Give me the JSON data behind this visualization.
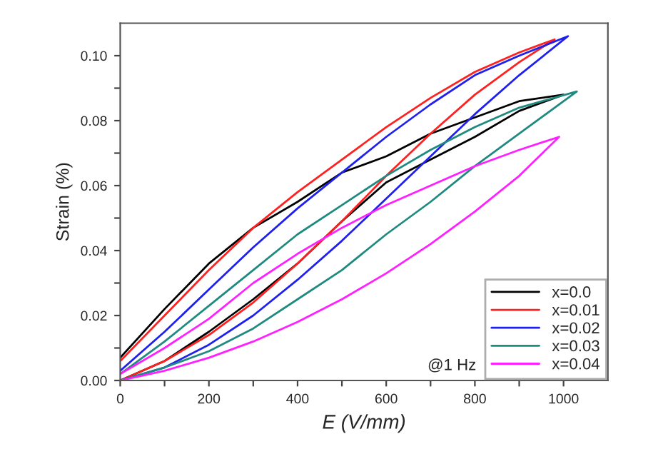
{
  "chart_data": {
    "type": "line",
    "xlabel": "E (V/mm)",
    "ylabel": "Strain (%)",
    "xlim": [
      0,
      1100
    ],
    "ylim": [
      0,
      0.11
    ],
    "xticks": [
      0,
      {
        "value": 100,
        "label": null
      },
      200,
      {
        "value": 300,
        "label": null
      },
      400,
      {
        "value": 500,
        "label": null
      },
      600,
      {
        "value": 700,
        "label": null
      },
      800,
      {
        "value": 900,
        "label": null
      },
      1000
    ],
    "yticks": [
      {
        "value": 0,
        "label": "0.00"
      },
      {
        "value": 0.01,
        "label": null
      },
      {
        "value": 0.02,
        "label": "0.02"
      },
      {
        "value": 0.03,
        "label": null
      },
      {
        "value": 0.04,
        "label": "0.04"
      },
      {
        "value": 0.05,
        "label": null
      },
      {
        "value": 0.06,
        "label": "0.06"
      },
      {
        "value": 0.07,
        "label": null
      },
      {
        "value": 0.08,
        "label": "0.08"
      },
      {
        "value": 0.09,
        "label": null
      },
      {
        "value": 0.1,
        "label": "0.10"
      }
    ],
    "grid": false,
    "legend": "bottom right",
    "marker": "none",
    "line_style": "solid",
    "annotations": [
      "@1 Hz"
    ],
    "series": [
      {
        "name": "x=0.0",
        "color": "#000000",
        "x": [
          0,
          100,
          200,
          300,
          400,
          500,
          600,
          700,
          800,
          900,
          1000,
          900,
          800,
          700,
          600,
          500,
          400,
          300,
          200,
          100,
          0
        ],
        "values": [
          0,
          0.006,
          0.015,
          0.025,
          0.036,
          0.049,
          0.061,
          0.068,
          0.075,
          0.083,
          0.088,
          0.086,
          0.081,
          0.076,
          0.069,
          0.064,
          0.055,
          0.047,
          0.036,
          0.022,
          0.007
        ]
      },
      {
        "name": "x=0.01",
        "color": "#ff2020",
        "x": [
          0,
          100,
          200,
          300,
          400,
          500,
          600,
          700,
          800,
          900,
          980,
          900,
          800,
          700,
          600,
          500,
          400,
          300,
          200,
          100,
          0
        ],
        "values": [
          0,
          0.006,
          0.014,
          0.024,
          0.036,
          0.049,
          0.063,
          0.076,
          0.088,
          0.098,
          0.105,
          0.101,
          0.095,
          0.087,
          0.078,
          0.068,
          0.058,
          0.047,
          0.034,
          0.02,
          0.006
        ]
      },
      {
        "name": "x=0.02",
        "color": "#2020ee",
        "x": [
          0,
          100,
          200,
          300,
          400,
          500,
          600,
          700,
          800,
          900,
          1010,
          900,
          800,
          700,
          600,
          500,
          400,
          300,
          200,
          100,
          0
        ],
        "values": [
          0,
          0.004,
          0.011,
          0.02,
          0.031,
          0.043,
          0.056,
          0.069,
          0.082,
          0.094,
          0.106,
          0.1,
          0.094,
          0.085,
          0.075,
          0.064,
          0.053,
          0.041,
          0.028,
          0.015,
          0.003
        ]
      },
      {
        "name": "x=0.03",
        "color": "#1f8a80",
        "x": [
          0,
          100,
          200,
          300,
          400,
          500,
          600,
          700,
          800,
          900,
          1030,
          900,
          800,
          700,
          600,
          500,
          400,
          300,
          200,
          100,
          0
        ],
        "values": [
          0,
          0.004,
          0.009,
          0.016,
          0.025,
          0.034,
          0.045,
          0.055,
          0.066,
          0.076,
          0.089,
          0.084,
          0.078,
          0.071,
          0.063,
          0.054,
          0.045,
          0.034,
          0.023,
          0.012,
          0.002
        ]
      },
      {
        "name": "x=0.04",
        "color": "#ff20ff",
        "x": [
          0,
          100,
          200,
          300,
          400,
          500,
          600,
          700,
          800,
          900,
          990,
          900,
          800,
          700,
          600,
          500,
          400,
          300,
          200,
          100,
          0
        ],
        "values": [
          0,
          0.003,
          0.007,
          0.012,
          0.018,
          0.025,
          0.033,
          0.042,
          0.052,
          0.063,
          0.075,
          0.071,
          0.066,
          0.06,
          0.054,
          0.047,
          0.039,
          0.03,
          0.019,
          0.01,
          0.002
        ]
      }
    ]
  }
}
